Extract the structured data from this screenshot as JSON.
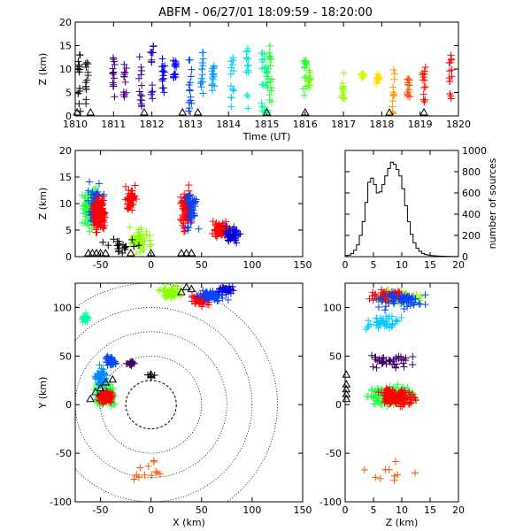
{
  "title": "ABFM - 06/27/01 18:09:59 - 18:20:00",
  "chart_data": [
    {
      "id": "time_height",
      "type": "scatter",
      "xlabel": "Time (UT)",
      "ylabel": "Z (km)",
      "xlim": [
        1810,
        1820
      ],
      "ylim": [
        0,
        20
      ],
      "xticks": [
        1810,
        1811,
        1812,
        1813,
        1814,
        1815,
        1816,
        1817,
        1818,
        1819,
        1820
      ],
      "xtick_labels": [
        "1810",
        "1811",
        "1812",
        "1813",
        "1814",
        "1815",
        "1816",
        "1817",
        "1818",
        "1819",
        "1820"
      ],
      "yticks": [
        0,
        5,
        10,
        15,
        20
      ],
      "ytick_labels": [
        "0",
        "5",
        "10",
        "15",
        "20"
      ],
      "color_by": "time",
      "columns": [
        {
          "t": 1810.1,
          "zmin": 1,
          "zmax": 14,
          "color": "#000000"
        },
        {
          "t": 1810.3,
          "zmin": 2,
          "zmax": 12,
          "color": "#1a1a1a"
        },
        {
          "t": 1811.0,
          "zmin": 3,
          "zmax": 13,
          "color": "#3c0066"
        },
        {
          "t": 1811.3,
          "zmin": 4,
          "zmax": 11,
          "color": "#550088"
        },
        {
          "t": 1811.7,
          "zmin": 2,
          "zmax": 14,
          "color": "#3a0099"
        },
        {
          "t": 1812.0,
          "zmin": 2,
          "zmax": 15,
          "color": "#2a00bb"
        },
        {
          "t": 1812.3,
          "zmin": 3,
          "zmax": 13,
          "color": "#0000dd"
        },
        {
          "t": 1812.6,
          "zmin": 8,
          "zmax": 12,
          "color": "#0000ff"
        },
        {
          "t": 1813.0,
          "zmin": 1,
          "zmax": 12,
          "color": "#0044ff"
        },
        {
          "t": 1813.3,
          "zmin": 2,
          "zmax": 14,
          "color": "#0088ff"
        },
        {
          "t": 1813.6,
          "zmin": 4,
          "zmax": 11,
          "color": "#009cff"
        },
        {
          "t": 1814.1,
          "zmin": 2,
          "zmax": 13,
          "color": "#00c8ff"
        },
        {
          "t": 1814.5,
          "zmin": 1,
          "zmax": 15,
          "color": "#00e8e8"
        },
        {
          "t": 1814.9,
          "zmin": 0,
          "zmax": 14,
          "color": "#00ffaa"
        },
        {
          "t": 1815.0,
          "zmin": 0,
          "zmax": 13,
          "color": "#00ff66"
        },
        {
          "t": 1815.1,
          "zmin": 3,
          "zmax": 15,
          "color": "#22ff22"
        },
        {
          "t": 1816.0,
          "zmin": 4,
          "zmax": 13,
          "color": "#22ff22"
        },
        {
          "t": 1816.1,
          "zmin": 5,
          "zmax": 10,
          "color": "#66ff00"
        },
        {
          "t": 1817.0,
          "zmin": 3,
          "zmax": 10,
          "color": "#99ff00"
        },
        {
          "t": 1817.5,
          "zmin": 8,
          "zmax": 9,
          "color": "#ccff00"
        },
        {
          "t": 1817.9,
          "zmin": 6,
          "zmax": 9,
          "color": "#ffdd00"
        },
        {
          "t": 1818.3,
          "zmin": 0,
          "zmax": 10,
          "color": "#ff9900"
        },
        {
          "t": 1818.7,
          "zmin": 4,
          "zmax": 8,
          "color": "#ff5500"
        },
        {
          "t": 1819.1,
          "zmin": 2,
          "zmax": 11,
          "color": "#ff1100"
        },
        {
          "t": 1819.8,
          "zmin": 3,
          "zmax": 13,
          "color": "#ff0000"
        }
      ],
      "station_marks": [
        1810.05,
        1810.4,
        1811.8,
        1812.8,
        1813.2,
        1815.0,
        1816.0,
        1818.2,
        1819.1
      ]
    },
    {
      "id": "x_height",
      "type": "scatter",
      "xlabel": "",
      "ylabel": "Z (km)",
      "xlim": [
        -75,
        150
      ],
      "ylim": [
        0,
        20
      ],
      "xticks": [
        -50,
        0,
        50,
        100,
        150
      ],
      "xtick_labels": [
        "-50",
        "0",
        "50",
        "100",
        "150"
      ],
      "yticks": [
        0,
        5,
        10,
        15,
        20
      ],
      "ytick_labels": [
        "0",
        "5",
        "10",
        "15",
        "20"
      ],
      "color_by": "time",
      "clusters": [
        {
          "x": -60,
          "xr": 12,
          "z": 9,
          "zr": 5,
          "color": "#22ff44",
          "n": 90
        },
        {
          "x": -55,
          "xr": 10,
          "z": 10,
          "zr": 5,
          "color": "#0044ff",
          "n": 60
        },
        {
          "x": -52,
          "xr": 9,
          "z": 8,
          "zr": 4,
          "color": "#ff0000",
          "n": 140
        },
        {
          "x": -20,
          "xr": 8,
          "z": 11,
          "zr": 3,
          "color": "#ff0000",
          "n": 50
        },
        {
          "x": -10,
          "xr": 20,
          "z": 3,
          "zr": 3,
          "color": "#88ff00",
          "n": 40
        },
        {
          "x": 35,
          "xr": 8,
          "z": 9,
          "zr": 5,
          "color": "#ff0000",
          "n": 100
        },
        {
          "x": 40,
          "xr": 10,
          "z": 9,
          "zr": 6,
          "color": "#0044ff",
          "n": 40
        },
        {
          "x": 70,
          "xr": 12,
          "z": 5,
          "zr": 2,
          "color": "#ff0000",
          "n": 60
        },
        {
          "x": 80,
          "xr": 12,
          "z": 4,
          "zr": 2,
          "color": "#0000dd",
          "n": 40
        },
        {
          "x": -30,
          "xr": 20,
          "z": 2,
          "zr": 2,
          "color": "#000000",
          "n": 20
        }
      ],
      "station_marks": [
        -62,
        -58,
        -54,
        -50,
        -45,
        -20,
        0,
        30,
        35,
        40
      ]
    },
    {
      "id": "height_histogram",
      "type": "line",
      "xlabel": "",
      "ylabel": "number of sources",
      "xlim": [
        0,
        20
      ],
      "ylim": [
        0,
        1000
      ],
      "xticks": [
        0,
        5,
        10,
        15,
        20
      ],
      "xtick_labels": [
        "0",
        "5",
        "10",
        "15",
        "20"
      ],
      "yticks": [
        0,
        200,
        400,
        600,
        800,
        1000
      ],
      "ytick_labels": [
        "0",
        "200",
        "400",
        "600",
        "800",
        "1000"
      ],
      "x": [
        0,
        0.5,
        1,
        1.5,
        2,
        2.5,
        3,
        3.5,
        4,
        4.5,
        5,
        5.5,
        6,
        6.5,
        7,
        7.5,
        8,
        8.5,
        9,
        9.5,
        10,
        10.5,
        11,
        11.5,
        12,
        12.5,
        13,
        13.5,
        14,
        14.5,
        15,
        15.5,
        16,
        16.5,
        17,
        17.5,
        18,
        18.5,
        19,
        19.5,
        20
      ],
      "values": [
        10,
        15,
        30,
        60,
        110,
        200,
        330,
        510,
        700,
        740,
        680,
        600,
        610,
        680,
        760,
        830,
        890,
        870,
        820,
        760,
        640,
        480,
        330,
        210,
        130,
        80,
        50,
        30,
        20,
        15,
        10,
        8,
        6,
        5,
        4,
        3,
        2,
        2,
        1,
        1,
        0
      ]
    },
    {
      "id": "plan_view",
      "type": "scatter",
      "xlabel": "X (km)",
      "ylabel": "Y (km)",
      "xlim": [
        -75,
        150
      ],
      "ylim": [
        -100,
        125
      ],
      "xticks": [
        -50,
        0,
        50,
        100,
        150
      ],
      "xtick_labels": [
        "-50",
        "0",
        "50",
        "100",
        "150"
      ],
      "yticks": [
        -100,
        -50,
        0,
        50,
        100
      ],
      "ytick_labels": [
        "-100",
        "-50",
        "0",
        "50",
        "100"
      ],
      "range_rings_km": [
        25,
        50,
        75,
        100,
        125
      ],
      "color_by": "time",
      "clusters": [
        {
          "x": -45,
          "xr": 15,
          "y": 10,
          "yr": 15,
          "color": "#22ff44",
          "n": 90
        },
        {
          "x": -50,
          "xr": 8,
          "y": 25,
          "yr": 20,
          "color": "#0088ff",
          "n": 50
        },
        {
          "x": -45,
          "xr": 10,
          "y": 8,
          "yr": 8,
          "color": "#ff0000",
          "n": 120
        },
        {
          "x": -40,
          "xr": 8,
          "y": 45,
          "yr": 8,
          "color": "#0044ff",
          "n": 30
        },
        {
          "x": -65,
          "xr": 5,
          "y": 90,
          "yr": 8,
          "color": "#00ffaa",
          "n": 20
        },
        {
          "x": -20,
          "xr": 6,
          "y": 42,
          "yr": 5,
          "color": "#3c0066",
          "n": 15
        },
        {
          "x": 20,
          "xr": 15,
          "y": 115,
          "yr": 10,
          "color": "#88ff00",
          "n": 50
        },
        {
          "x": 50,
          "xr": 12,
          "y": 108,
          "yr": 8,
          "color": "#ff0000",
          "n": 60
        },
        {
          "x": 60,
          "xr": 18,
          "y": 112,
          "yr": 8,
          "color": "#0044ff",
          "n": 60
        },
        {
          "x": 75,
          "xr": 10,
          "y": 118,
          "yr": 6,
          "color": "#0000dd",
          "n": 30
        },
        {
          "x": 0,
          "xr": 5,
          "y": 30,
          "yr": 4,
          "color": "#000000",
          "n": 6
        },
        {
          "x": 0,
          "xr": 30,
          "y": -70,
          "yr": 25,
          "color": "#ff5500",
          "n": 12
        }
      ],
      "station_marks": [
        [
          -60,
          5
        ],
        [
          -55,
          12
        ],
        [
          -50,
          16
        ],
        [
          -45,
          22
        ],
        [
          -38,
          25
        ],
        [
          0,
          30
        ],
        [
          30,
          115
        ],
        [
          35,
          120
        ],
        [
          40,
          118
        ]
      ]
    },
    {
      "id": "y_height",
      "type": "scatter",
      "xlabel": "Z (km)",
      "ylabel": "",
      "xlim": [
        0,
        20
      ],
      "ylim": [
        -100,
        125
      ],
      "xticks": [
        0,
        5,
        10,
        15,
        20
      ],
      "xtick_labels": [
        "0",
        "5",
        "10",
        "15",
        "20"
      ],
      "yticks": [
        -100,
        -50,
        0,
        50,
        100
      ],
      "ytick_labels": [
        "-100",
        "-50",
        "0",
        "50",
        "100"
      ],
      "color_by": "time",
      "clusters": [
        {
          "z": 8,
          "zr": 6,
          "y": 10,
          "yr": 15,
          "color": "#22ff44",
          "n": 120
        },
        {
          "z": 9,
          "zr": 4,
          "y": 8,
          "yr": 12,
          "color": "#ff0000",
          "n": 140
        },
        {
          "z": 8,
          "zr": 6,
          "y": 45,
          "yr": 10,
          "color": "#3c0066",
          "n": 40
        },
        {
          "z": 9,
          "zr": 6,
          "y": 110,
          "yr": 10,
          "color": "#88ff00",
          "n": 60
        },
        {
          "z": 8,
          "zr": 5,
          "y": 112,
          "yr": 8,
          "color": "#ff0000",
          "n": 60
        },
        {
          "z": 10,
          "zr": 6,
          "y": 108,
          "yr": 12,
          "color": "#0044ff",
          "n": 60
        },
        {
          "z": 7,
          "zr": 6,
          "y": 85,
          "yr": 10,
          "color": "#00c8ff",
          "n": 40
        },
        {
          "z": 8,
          "zr": 8,
          "y": -60,
          "yr": 30,
          "color": "#ff5500",
          "n": 10
        }
      ],
      "station_marks": [
        [
          0.2,
          5
        ],
        [
          0.2,
          10
        ],
        [
          0.2,
          15
        ],
        [
          0.2,
          20
        ],
        [
          0.2,
          30
        ]
      ]
    }
  ]
}
